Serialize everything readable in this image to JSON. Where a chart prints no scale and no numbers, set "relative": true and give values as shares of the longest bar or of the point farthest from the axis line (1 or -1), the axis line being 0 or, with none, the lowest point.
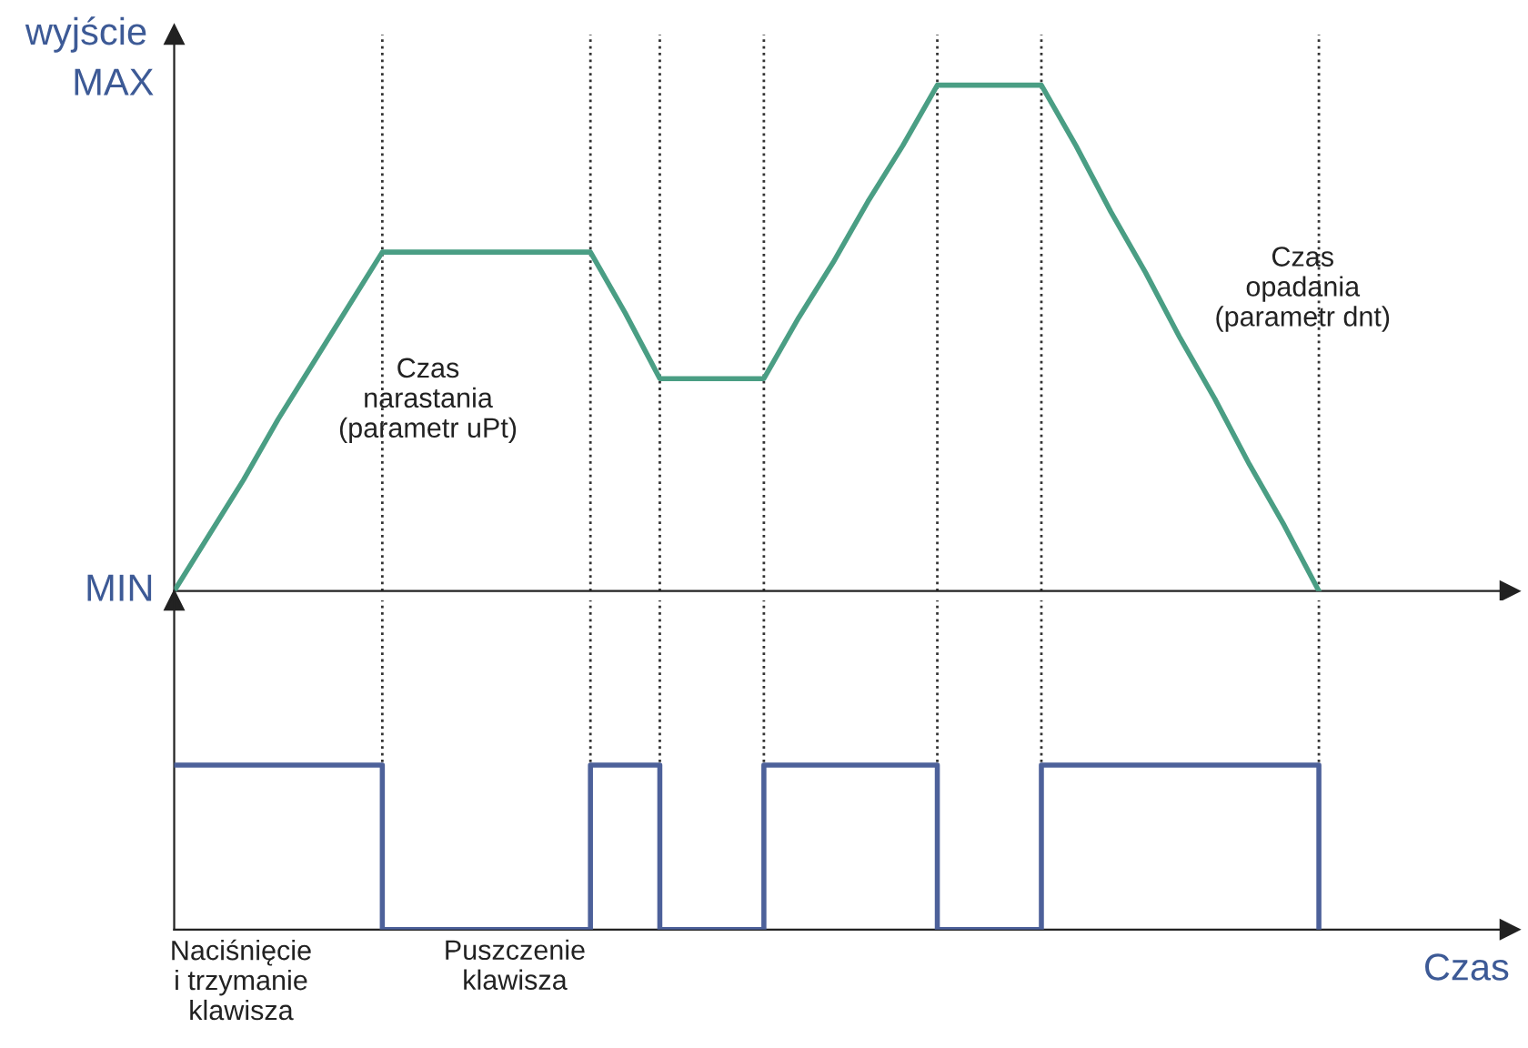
{
  "chart_data": [
    {
      "type": "line",
      "ylabel": "wyjście",
      "categories": [
        null,
        null,
        null,
        null,
        null,
        null,
        null,
        null,
        null,
        null,
        null,
        null,
        null,
        null,
        null,
        null,
        null,
        null,
        null,
        null,
        null,
        null,
        null,
        null,
        null,
        null,
        null,
        null,
        null,
        null,
        null,
        null,
        null,
        null
      ],
      "series": [
        {
          "color": "#4a9e84",
          "values": [
            0,
            0.11,
            0.22,
            0.34,
            0.45,
            0.56,
            0.67,
            0.67,
            0.67,
            0.67,
            0.67,
            0.67,
            0.67,
            0.55,
            0.42,
            0.42,
            0.42,
            0.42,
            0.54,
            0.65,
            0.77,
            0.88,
            1,
            1,
            1,
            1,
            0.88,
            0.75,
            0.63,
            0.5,
            0.38,
            0.25,
            0.13,
            0
          ]
        }
      ],
      "relative": true,
      "tick_labels": false,
      "grid": "x",
      "marker": "none",
      "line_style": "solid",
      "annotations": [
        "MAX",
        "MIN",
        "Czas\nnarastania\n(parametr uPt)",
        "Czas\nopadania\n(parametr dnt)"
      ]
    },
    {
      "type": "step",
      "relative": true,
      "xlabel": "Czas",
      "categories": [
        null,
        null,
        null,
        null,
        null,
        null,
        null,
        null,
        null,
        null,
        null,
        null,
        null,
        null,
        null,
        null,
        null,
        null,
        null,
        null,
        null,
        null,
        null,
        null,
        null,
        null,
        null,
        null,
        null,
        null,
        null,
        null,
        null,
        null
      ],
      "series": [
        {
          "color": "#4d619a",
          "values": [
            1,
            1,
            1,
            1,
            1,
            1,
            0,
            0,
            0,
            0,
            0,
            0,
            1,
            1,
            0,
            0,
            0,
            1,
            1,
            1,
            1,
            1,
            0,
            0,
            0,
            1,
            1,
            1,
            1,
            1,
            1,
            1,
            1,
            0
          ]
        }
      ],
      "tick_labels": false,
      "grid": "x",
      "annotations": [
        "Naciśnięcie\ni trzymanie\nklawisza",
        "Puszczenie\nklawisza"
      ]
    }
  ]
}
